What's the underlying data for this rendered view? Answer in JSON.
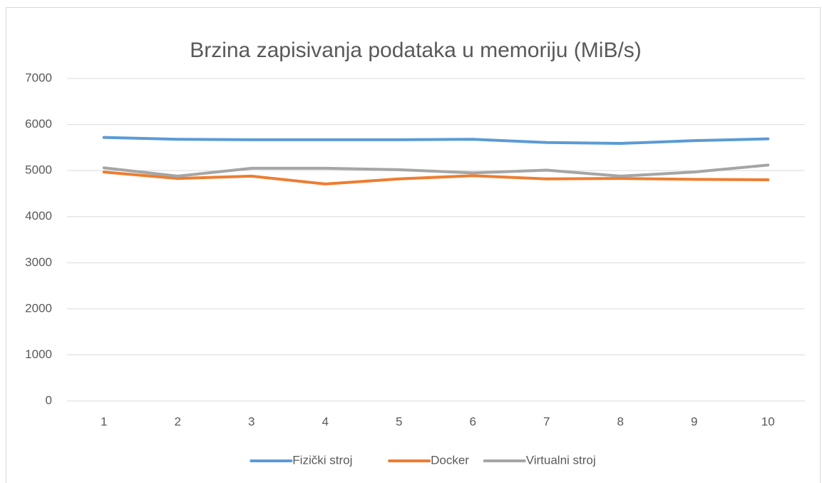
{
  "chart_data": {
    "type": "line",
    "title": "Brzina zapisivanja podataka u memoriju (MiB/s)",
    "categories": [
      "1",
      "2",
      "3",
      "4",
      "5",
      "6",
      "7",
      "8",
      "9",
      "10"
    ],
    "series": [
      {
        "name": "Fizički stroj",
        "color": "#5b9bd5",
        "values": [
          5720,
          5680,
          5670,
          5670,
          5670,
          5680,
          5610,
          5590,
          5650,
          5690
        ]
      },
      {
        "name": "Docker",
        "color": "#ed7d31",
        "values": [
          4970,
          4830,
          4880,
          4710,
          4820,
          4890,
          4820,
          4830,
          4810,
          4800
        ]
      },
      {
        "name": "Virtualni stroj",
        "color": "#a5a5a5",
        "values": [
          5060,
          4880,
          5050,
          5050,
          5020,
          4950,
          5010,
          4880,
          4970,
          5120
        ]
      }
    ],
    "ylim": [
      0,
      7000
    ],
    "yticks": [
      0,
      1000,
      2000,
      3000,
      4000,
      5000,
      6000,
      7000
    ],
    "grid": true,
    "legend": "bottom"
  }
}
